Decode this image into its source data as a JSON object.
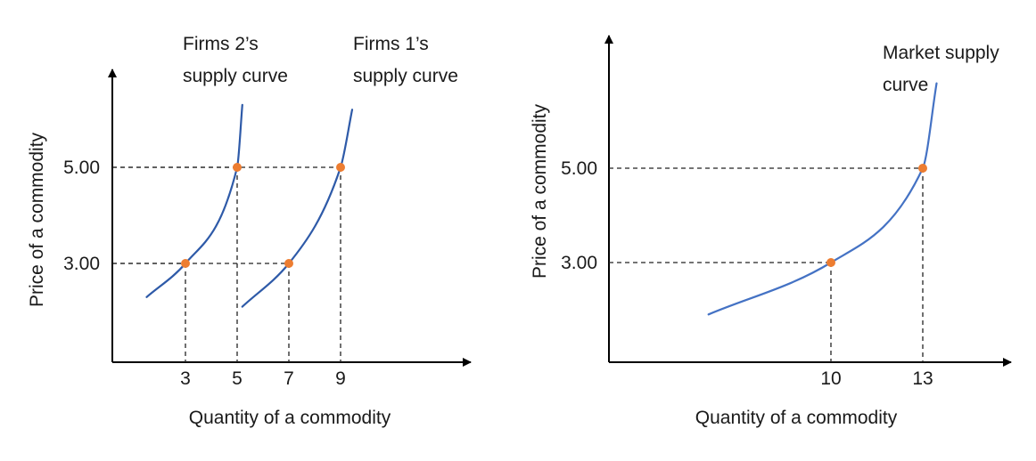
{
  "chart_data": [
    {
      "type": "line",
      "title": "",
      "xlabel": "Quantity of a commodity",
      "ylabel": "Price of a commodity",
      "x_ticks": [
        3,
        5,
        7,
        9
      ],
      "y_ticks": [
        3.0,
        5.0
      ],
      "y_tick_labels": [
        "3.00",
        "5.00"
      ],
      "series": [
        {
          "name": "Firms 2's supply curve",
          "label_lines": [
            "Firms 2’s",
            "supply curve"
          ],
          "x": [
            1.5,
            3,
            5,
            5.2
          ],
          "y": [
            2.3,
            3.0,
            5.0,
            6.3
          ],
          "color": "#2e5aa8"
        },
        {
          "name": "Firms 1's supply curve",
          "label_lines": [
            "Firms 1’s",
            "supply curve"
          ],
          "x": [
            5.2,
            7,
            9,
            9.45
          ],
          "y": [
            2.1,
            3.0,
            5.0,
            6.2
          ],
          "color": "#2e5aa8"
        }
      ],
      "marked_points": [
        {
          "x": 3,
          "y": 3.0
        },
        {
          "x": 5,
          "y": 5.0
        },
        {
          "x": 7,
          "y": 3.0
        },
        {
          "x": 9,
          "y": 5.0
        }
      ],
      "point_color": "#ed7d31",
      "dashed_guides": true,
      "grid": false
    },
    {
      "type": "line",
      "title": "",
      "xlabel": "Quantity of a commodity",
      "ylabel": "Price of a commodity",
      "x_ticks": [
        10,
        13
      ],
      "y_ticks": [
        3.0,
        5.0
      ],
      "y_tick_labels": [
        "3.00",
        "5.00"
      ],
      "series": [
        {
          "name": "Market supply curve",
          "label_lines": [
            "Market supply",
            "curve"
          ],
          "x": [
            6,
            10,
            13,
            13.45
          ],
          "y": [
            1.9,
            3.0,
            5.0,
            6.8
          ],
          "color": "#4472c4"
        }
      ],
      "marked_points": [
        {
          "x": 10,
          "y": 3.0
        },
        {
          "x": 13,
          "y": 5.0
        }
      ],
      "point_color": "#ed7d31",
      "dashed_guides": true,
      "grid": false
    }
  ]
}
